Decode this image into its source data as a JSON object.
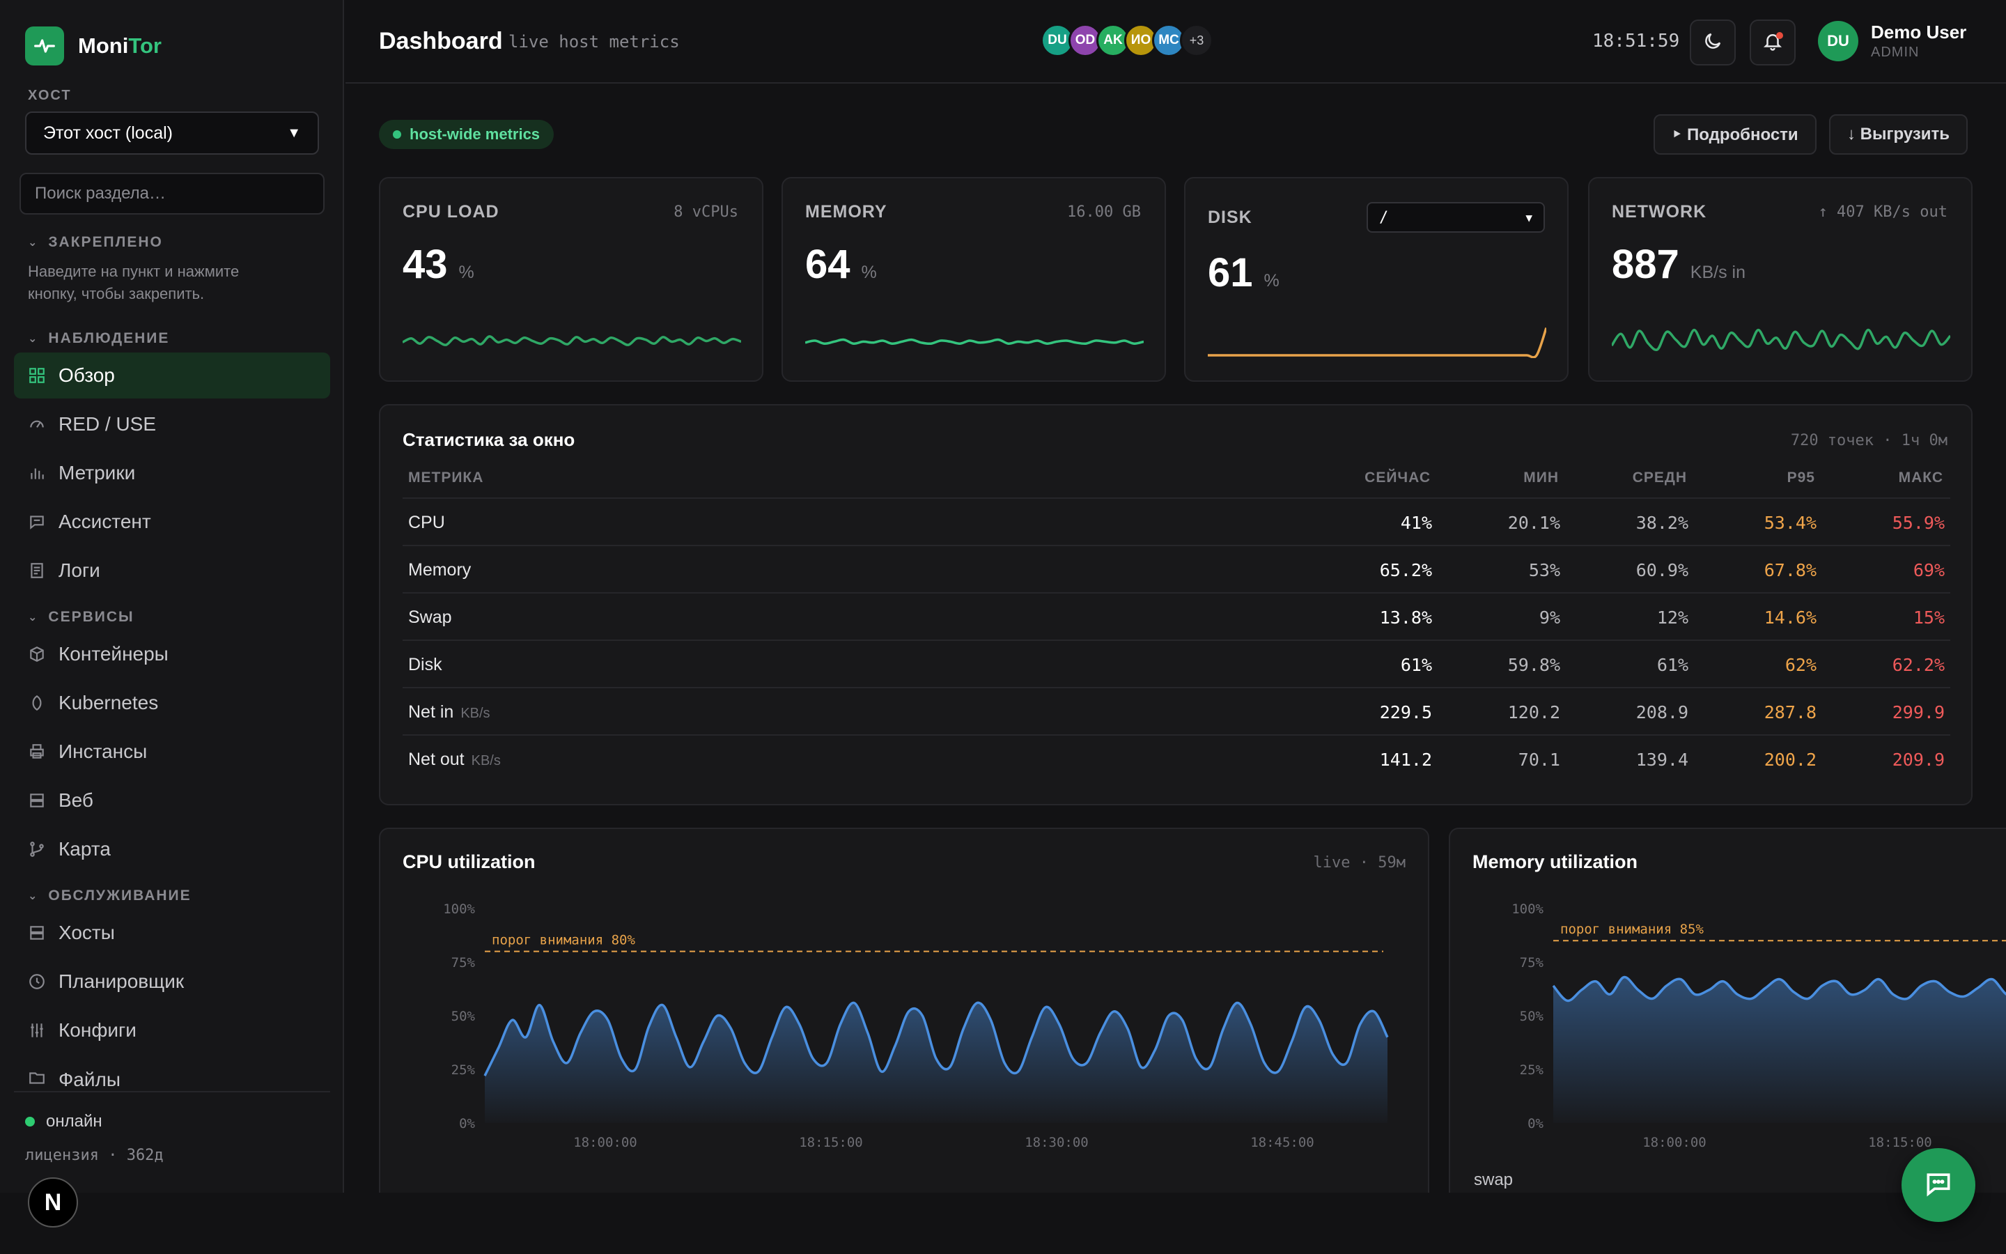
{
  "app": {
    "name_primary": "Moni",
    "name_accent": "Tor"
  },
  "sidebar": {
    "host_label": "ХОСТ",
    "host_value": "Этот хост (local)",
    "search_placeholder": "Поиск раздела…",
    "pinned_header": "ЗАКРЕПЛЕНО",
    "pinned_hint": "Наведите на пункт и нажмите кнопку, чтобы закрепить.",
    "observe_header": "НАБЛЮДЕНИЕ",
    "observe_items": [
      "Обзор",
      "RED / USE",
      "Метрики",
      "Ассистент",
      "Логи"
    ],
    "services_header": "СЕРВИСЫ",
    "services_items": [
      "Контейнеры",
      "Kubernetes",
      "Инстансы",
      "Веб",
      "Карта"
    ],
    "maint_header": "ОБСЛУЖИВАНИЕ",
    "maint_items": [
      "Хосты",
      "Планировщик",
      "Конфиги",
      "Файлы"
    ],
    "status": "онлайн",
    "license": "лицензия · 362д",
    "badge": "N"
  },
  "header": {
    "title": "Dashboard",
    "subtitle": "live host metrics",
    "avatars": [
      {
        "initials": "DU",
        "color": "#16a085"
      },
      {
        "initials": "OD",
        "color": "#8e44ad"
      },
      {
        "initials": "AK",
        "color": "#27ae60"
      },
      {
        "initials": "ИО",
        "color": "#b7950b"
      },
      {
        "initials": "MC",
        "color": "#2e86c1"
      }
    ],
    "avatars_more": "+3",
    "clock": "18:51:59",
    "user_initials": "DU",
    "user_name": "Demo User",
    "user_role": "ADMIN"
  },
  "toolbar": {
    "scope_pill": "host-wide metrics",
    "details_button": "‣ Подробности",
    "export_button": "↓ Выгрузить"
  },
  "cards": {
    "cpu": {
      "label": "CPU LOAD",
      "meta": "8 vCPUs",
      "value": "43",
      "unit": "%"
    },
    "memory": {
      "label": "MEMORY",
      "meta": "16.00 GB",
      "value": "64",
      "unit": "%"
    },
    "disk": {
      "label": "DISK",
      "mount": "/",
      "value": "61",
      "unit": "%"
    },
    "network": {
      "label": "NETWORK",
      "meta": "↑ 407 KB/s out",
      "value": "887",
      "unit": "KB/s in"
    }
  },
  "stats": {
    "title": "Статистика за окно",
    "meta": "720 точек · 1ч 0м",
    "columns": [
      "МЕТРИКА",
      "СЕЙЧАС",
      "МИН",
      "СРЕДН",
      "P95",
      "МАКС"
    ],
    "rows": [
      {
        "name": "CPU",
        "unit": "",
        "now": "41%",
        "min": "20.1%",
        "avg": "38.2%",
        "p95": "53.4%",
        "max": "55.9%"
      },
      {
        "name": "Memory",
        "unit": "",
        "now": "65.2%",
        "min": "53%",
        "avg": "60.9%",
        "p95": "67.8%",
        "max": "69%"
      },
      {
        "name": "Swap",
        "unit": "",
        "now": "13.8%",
        "min": "9%",
        "avg": "12%",
        "p95": "14.6%",
        "max": "15%"
      },
      {
        "name": "Disk",
        "unit": "",
        "now": "61%",
        "min": "59.8%",
        "avg": "61%",
        "p95": "62%",
        "max": "62.2%"
      },
      {
        "name": "Net in",
        "unit": "KB/s",
        "now": "229.5",
        "min": "120.2",
        "avg": "208.9",
        "p95": "287.8",
        "max": "299.9"
      },
      {
        "name": "Net out",
        "unit": "KB/s",
        "now": "141.2",
        "min": "70.1",
        "avg": "139.4",
        "p95": "200.2",
        "max": "209.9"
      }
    ]
  },
  "charts": {
    "cpu": {
      "title": "CPU utilization",
      "meta": "live · 59м",
      "threshold_label": "порог внимания 80%"
    },
    "memory": {
      "title": "Memory utilization",
      "threshold_label": "порог внимания 85%",
      "footer": "swap"
    }
  },
  "chart_data": [
    {
      "type": "area",
      "title": "CPU utilization",
      "ylim": [
        0,
        100
      ],
      "yticks": [
        "100%",
        "75%",
        "50%",
        "25%",
        "0%"
      ],
      "xticks": [
        "18:00:00",
        "18:15:00",
        "18:30:00",
        "18:45:00"
      ],
      "threshold": 80,
      "color": "#4a8fe0",
      "values": [
        22,
        35,
        48,
        40,
        55,
        38,
        28,
        42,
        52,
        48,
        30,
        25,
        45,
        55,
        40,
        26,
        38,
        50,
        44,
        28,
        24,
        40,
        54,
        46,
        30,
        28,
        46,
        56,
        42,
        24,
        36,
        52,
        50,
        30,
        26,
        44,
        56,
        48,
        28,
        24,
        40,
        54,
        46,
        30,
        28,
        42,
        52,
        44,
        26,
        34,
        50,
        48,
        30,
        26,
        44,
        56,
        46,
        28,
        24,
        38,
        54,
        48,
        32,
        28,
        46,
        52,
        40
      ]
    },
    {
      "type": "area",
      "title": "Memory utilization",
      "ylim": [
        0,
        100
      ],
      "yticks": [
        "100%",
        "75%",
        "50%",
        "25%",
        "0%"
      ],
      "xticks": [
        "18:00:00",
        "18:15:00"
      ],
      "threshold": 85,
      "color": "#4a8fe0",
      "values": [
        64,
        57,
        62,
        66,
        60,
        68,
        62,
        58,
        64,
        67,
        60,
        62,
        66,
        60,
        58,
        63,
        67,
        61,
        58,
        64,
        66,
        60,
        62,
        67,
        60,
        58,
        64,
        66,
        61,
        59,
        63,
        67,
        60,
        58,
        64,
        66,
        62,
        60
      ]
    }
  ],
  "sparks": {
    "cpu": {
      "color": "#2fa866",
      "values": [
        40,
        46,
        38,
        48,
        42,
        36,
        47,
        41,
        45,
        37,
        49,
        40,
        44,
        39,
        47,
        42,
        38,
        46,
        43,
        37,
        48,
        41,
        45,
        39,
        47,
        42,
        36,
        46,
        44,
        38,
        48,
        41,
        44,
        37,
        47,
        42,
        46,
        39,
        45,
        41
      ]
    },
    "memory": {
      "color": "#34c47e",
      "values": [
        63,
        65,
        62,
        64,
        66,
        62,
        64,
        63,
        65,
        62,
        64,
        66,
        63,
        62,
        65,
        64,
        62,
        65,
        63,
        64,
        66,
        62,
        64,
        63,
        65,
        62,
        64,
        65,
        63,
        62,
        65,
        64,
        63,
        65,
        62,
        64
      ]
    },
    "disk": {
      "color": "#e8a34a",
      "values": [
        60,
        60,
        60,
        60,
        60,
        60,
        60,
        60,
        60,
        60,
        60,
        60,
        60,
        60,
        60,
        60,
        60,
        60,
        60,
        60,
        60,
        60,
        60,
        60,
        60,
        60,
        60,
        60,
        60,
        60,
        60,
        60,
        60,
        60,
        60,
        61.5
      ]
    },
    "network": {
      "color": "#2fa866",
      "values": [
        800,
        920,
        780,
        950,
        820,
        760,
        940,
        860,
        790,
        960,
        810,
        900,
        770,
        930,
        850,
        790,
        960,
        820,
        880,
        770,
        940,
        830,
        800,
        950,
        790,
        910,
        840,
        770,
        960,
        820,
        890,
        780,
        930,
        850,
        800,
        950,
        810,
        900
      ]
    }
  }
}
